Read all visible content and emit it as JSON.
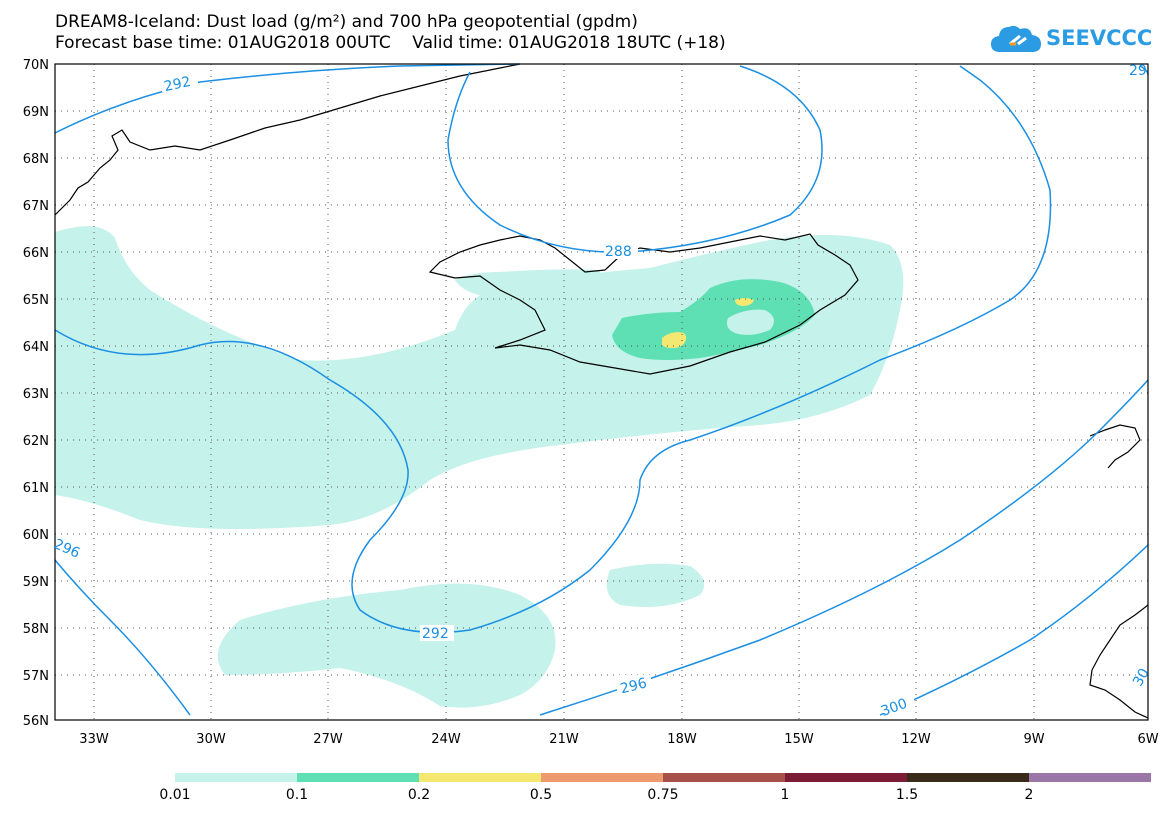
{
  "header": {
    "title": "DREAM8-Iceland: Dust load (g/m²) and 700 hPa geopotential (gpdm)",
    "subtitle": "Forecast base time: 01AUG2018 00UTC    Valid time: 01AUG2018 18UTC (+18)"
  },
  "logo": {
    "text": "SEEVCCC",
    "icon": "cloud-icon",
    "color": "#2b9be3"
  },
  "map": {
    "lat_labels": [
      "70N",
      "69N",
      "68N",
      "67N",
      "66N",
      "65N",
      "64N",
      "63N",
      "62N",
      "61N",
      "60N",
      "59N",
      "58N",
      "57N",
      "56N"
    ],
    "lon_labels": [
      "33W",
      "30W",
      "27W",
      "24W",
      "21W",
      "18W",
      "15W",
      "12W",
      "9W",
      "6W"
    ],
    "contour_labels": [
      "292",
      "288",
      "292",
      "296",
      "296",
      "300",
      "29",
      "30"
    ],
    "contour_color": "#1a8fe3"
  },
  "colorbar": {
    "labels": [
      "0.01",
      "0.1",
      "0.2",
      "0.5",
      "0.75",
      "1",
      "1.5",
      "2"
    ],
    "colors": [
      "#c5f2ea",
      "#5ee0b4",
      "#f5e871",
      "#ec9a6e",
      "#a8514a",
      "#7b1e35",
      "#3a2a1a",
      "#9b77a8"
    ]
  }
}
